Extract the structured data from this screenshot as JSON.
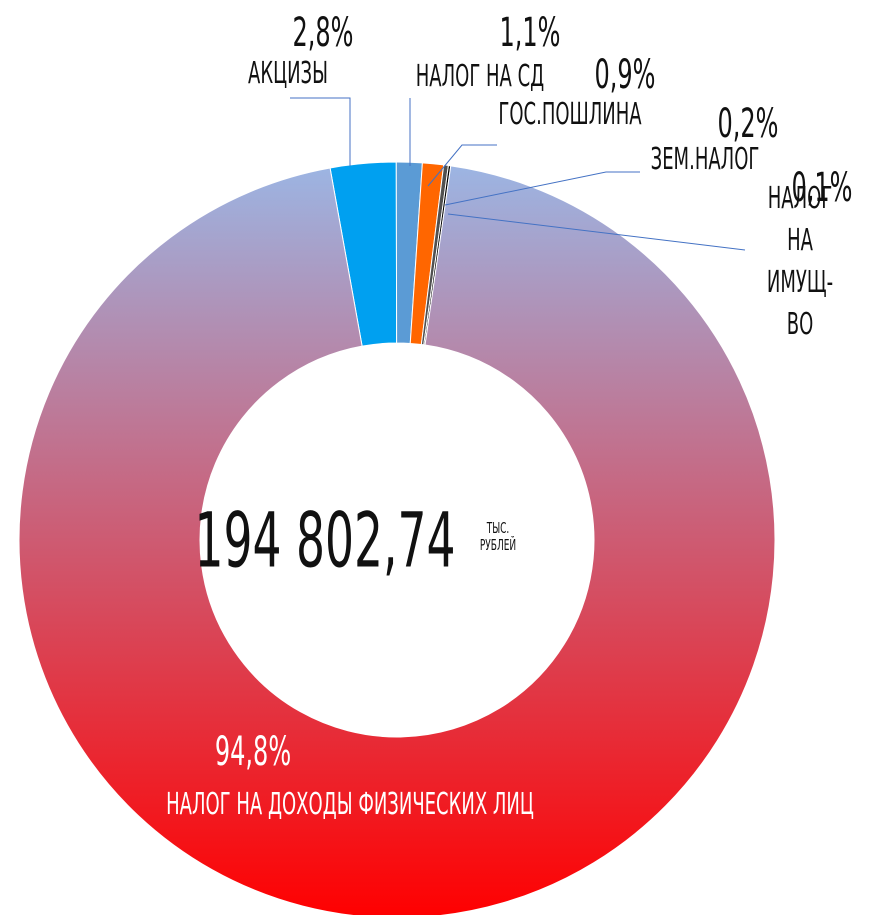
{
  "chart_data": {
    "type": "donut",
    "categories": [
      "АКЦИЗЫ",
      "НАЛОГ НА СД",
      "ГОС.ПОШЛИНА",
      "ЗЕМ.НАЛОГ",
      "НАЛОГ НА ИМУЩ-ВО",
      "НАЛОГ НА ДОХОДЫ ФИЗИЧЕСКИХ ЛИЦ"
    ],
    "values": [
      2.8,
      1.1,
      0.9,
      0.2,
      0.1,
      94.8
    ],
    "value_labels": [
      "2,8%",
      "1,1%",
      "0,9%",
      "0,2%",
      "0,1%",
      "94,8%"
    ],
    "colors": [
      "#00a0f0",
      "#5b9bd5",
      "#ff6600",
      "#505050",
      "#000000",
      "#ff0000"
    ],
    "gradient_top_color": "#9cb5e3",
    "center_label": "194 802,74",
    "center_unit": "ТЫС. РУБЛЕЙ"
  }
}
